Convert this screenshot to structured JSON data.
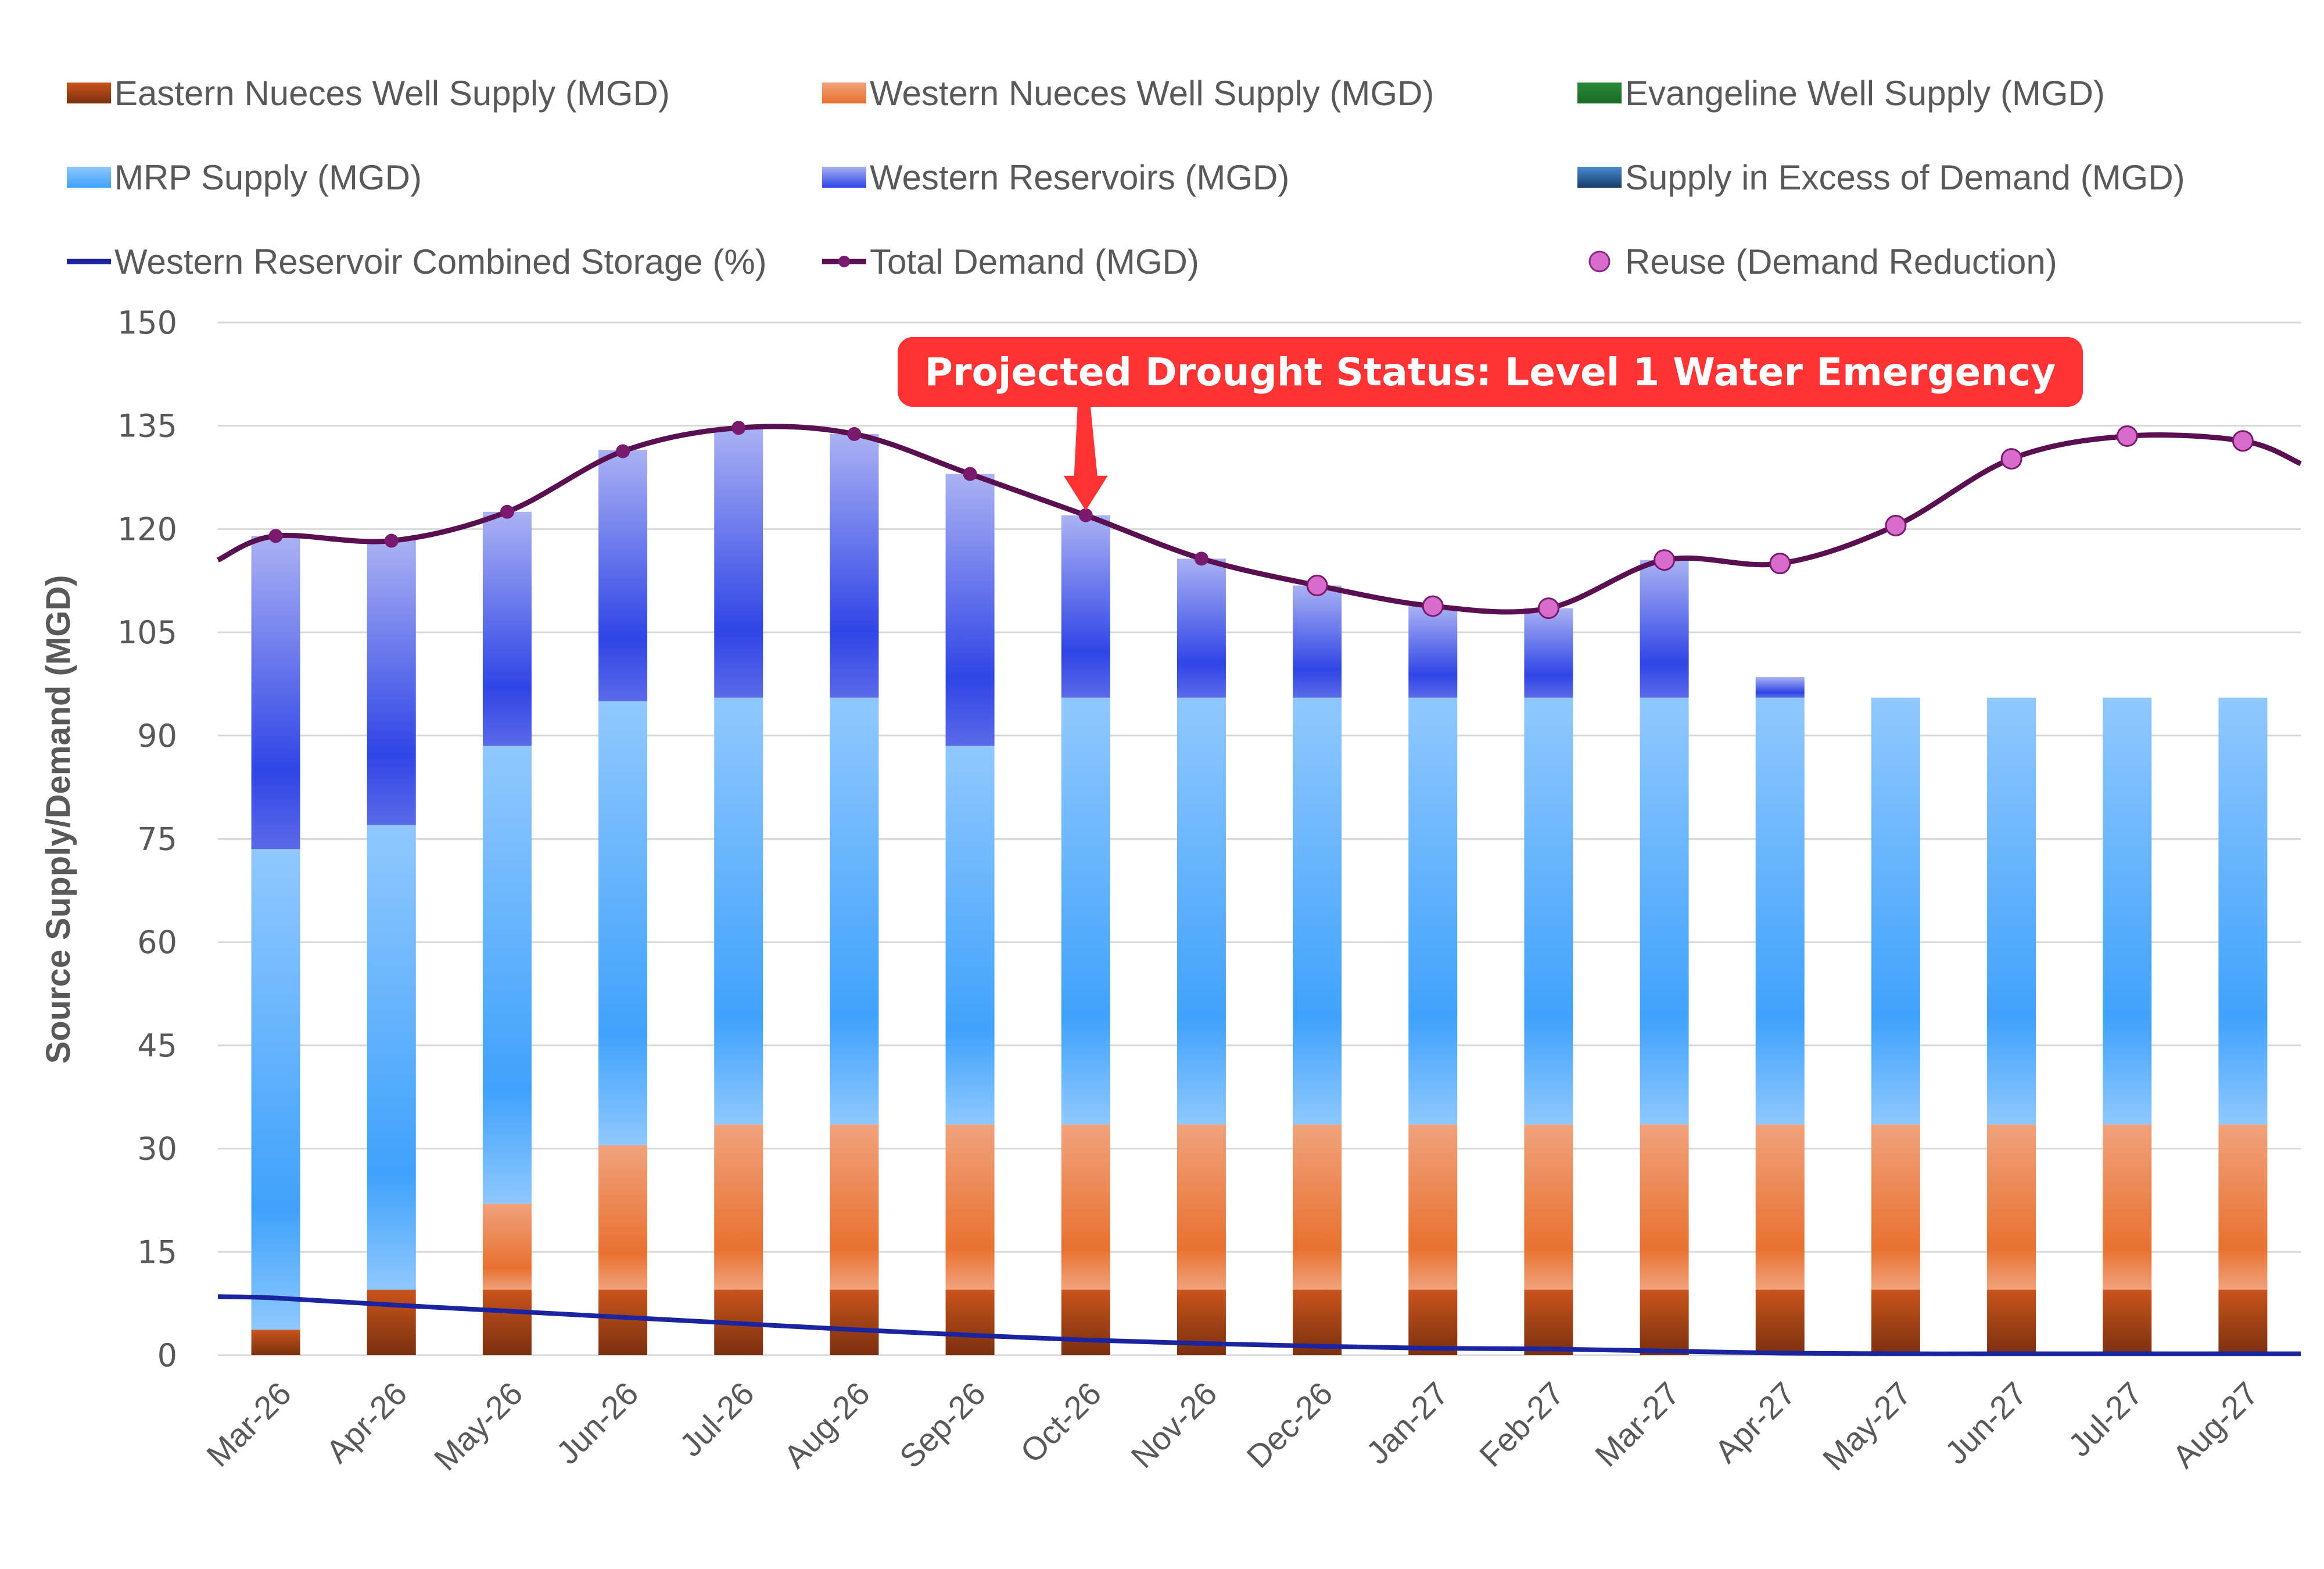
{
  "chart_data": {
    "type": "bar",
    "title": "",
    "xlabel": "",
    "ylabel": "Source Supply/Demand (MGD)",
    "ylim": [
      0,
      150
    ],
    "yticks": [
      0,
      15,
      30,
      45,
      60,
      75,
      90,
      105,
      120,
      135,
      150
    ],
    "grid": true,
    "legend_position": "top",
    "categories": [
      "Mar-26",
      "Apr-26",
      "May-26",
      "Jun-26",
      "Jul-26",
      "Aug-26",
      "Sep-26",
      "Oct-26",
      "Nov-26",
      "Dec-26",
      "Jan-27",
      "Feb-27",
      "Mar-27",
      "Apr-27",
      "May-27",
      "Jun-27",
      "Jul-27",
      "Aug-27"
    ],
    "stacked_series": [
      {
        "name": "Eastern Nueces Well Supply (MGD)",
        "color": "#b84a12",
        "values": [
          3.7,
          9.5,
          9.5,
          9.5,
          9.5,
          9.5,
          9.5,
          9.5,
          9.5,
          9.5,
          9.5,
          9.5,
          9.5,
          9.5,
          9.5,
          9.5,
          9.5,
          9.5
        ]
      },
      {
        "name": "Western Nueces Well Supply (MGD)",
        "color": "#e8712f",
        "values": [
          0,
          0,
          12.5,
          21,
          24,
          24,
          24,
          24,
          24,
          24,
          24,
          24,
          24,
          24,
          24,
          24,
          24,
          24
        ]
      },
      {
        "name": "Evangeline Well Supply (MGD)",
        "color": "#1e7a2a",
        "values": [
          0,
          0,
          0,
          0,
          0,
          0,
          0,
          0,
          0,
          0,
          0,
          0,
          0,
          0,
          0,
          0,
          0,
          0
        ]
      },
      {
        "name": "MRP Supply (MGD)",
        "color": "#42a5fb",
        "values": [
          69.8,
          67.5,
          66.5,
          64.5,
          62,
          62,
          55,
          62,
          62,
          62,
          62,
          62,
          62,
          62,
          62,
          62,
          62,
          62
        ]
      },
      {
        "name": "Western Reservoirs (MGD)",
        "color": "#2f45e6",
        "values": [
          45.5,
          41.5,
          34,
          36.5,
          39.2,
          38.3,
          39.5,
          26.5,
          20.2,
          16.3,
          13.3,
          13,
          20,
          3,
          0,
          0,
          0,
          0
        ]
      },
      {
        "name": "Supply in Excess of Demand (MGD)",
        "color": "#1f4e79",
        "values": [
          0,
          0,
          0,
          0,
          0,
          0,
          0,
          0,
          0,
          0,
          0,
          0,
          0,
          0,
          0,
          0,
          0,
          0
        ]
      }
    ],
    "line_series": [
      {
        "name": "Western Reservoir Combined Storage (%)",
        "color": "#1a23a0",
        "values": [
          8.3,
          7.3,
          6.4,
          5.5,
          4.6,
          3.7,
          2.9,
          2.2,
          1.7,
          1.3,
          1.0,
          0.9,
          0.6,
          0.3,
          0.2,
          0.2,
          0.2,
          0.2
        ],
        "start_value": 8.5,
        "end_value": 0.2
      },
      {
        "name": "Total Demand (MGD)",
        "color": "#5a1050",
        "values": [
          119,
          118.3,
          122.5,
          131.3,
          134.7,
          133.8,
          128,
          122,
          115.7,
          111.8,
          108.8,
          108.5,
          115.5,
          115,
          120.5,
          130.2,
          133.5,
          132.8
        ],
        "start_value": 115.5,
        "end_value": 129.5
      }
    ],
    "marker_series": {
      "name": "Reuse (Demand Reduction)",
      "color": "#d86ccc",
      "categories": [
        "Dec-26",
        "Jan-27",
        "Feb-27",
        "Mar-27",
        "Apr-27",
        "May-27",
        "Jun-27",
        "Jul-27",
        "Aug-27"
      ]
    },
    "annotation": {
      "text": "Projected Drought Status: Level 1 Water Emergency",
      "points_to": "Oct-26",
      "color": "#ff3333"
    }
  },
  "legend": [
    {
      "label": "Eastern Nueces Well Supply (MGD)",
      "kind": "swatch",
      "color_top": "#c9541b",
      "color_bottom": "#7a3010"
    },
    {
      "label": "Western Nueces Well Supply (MGD)",
      "kind": "swatch",
      "color_top": "#f0a27c",
      "color_bottom": "#e8712f"
    },
    {
      "label": "Evangeline Well Supply (MGD)",
      "kind": "swatch",
      "color_top": "#2a8a36",
      "color_bottom": "#1a6a24"
    },
    {
      "label": "MRP Supply (MGD)",
      "kind": "swatch",
      "color_top": "#8ec8ff",
      "color_bottom": "#3fa2fb"
    },
    {
      "label": "Western Reservoirs (MGD)",
      "kind": "swatch",
      "color_top": "#a9b0f2",
      "color_bottom": "#2f45e6"
    },
    {
      "label": "Supply in Excess of Demand (MGD)",
      "kind": "swatch",
      "color_top": "#4a8ad0",
      "color_bottom": "#163d6b"
    },
    {
      "label": "Western Reservoir Combined Storage (%)",
      "kind": "line",
      "color": "#1a23a0"
    },
    {
      "label": "Total Demand (MGD)",
      "kind": "line-marker",
      "color": "#5a1050"
    },
    {
      "label": "Reuse (Demand Reduction)",
      "kind": "circle",
      "color": "#d86ccc"
    }
  ]
}
